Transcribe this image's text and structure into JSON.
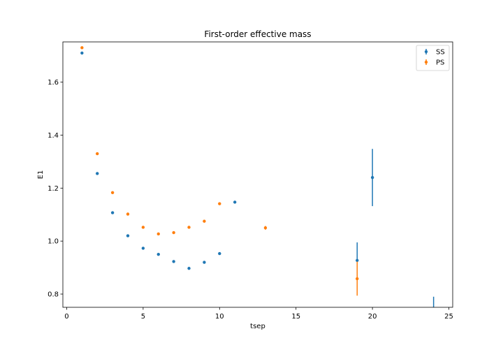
{
  "chart_data": {
    "type": "scatter",
    "title": "First-order effective mass",
    "xlabel": "tsep",
    "ylabel": "E1",
    "xlim": [
      -0.25,
      25.25
    ],
    "ylim": [
      0.75,
      1.752
    ],
    "xticks": [
      0,
      5,
      10,
      15,
      20,
      25
    ],
    "yticks": [
      0.8,
      1.0,
      1.2,
      1.4,
      1.6
    ],
    "xtick_labels": [
      "0",
      "5",
      "10",
      "15",
      "20",
      "25"
    ],
    "ytick_labels": [
      "0.8",
      "1.0",
      "1.2",
      "1.4",
      "1.6"
    ],
    "grid": false,
    "legend_position": "top-right",
    "series": [
      {
        "name": "SS",
        "color": "#1f77b4",
        "points": [
          {
            "x": 1,
            "y": 1.71,
            "err": 0.002
          },
          {
            "x": 2,
            "y": 1.255,
            "err": 0.002
          },
          {
            "x": 3,
            "y": 1.107,
            "err": 0.002
          },
          {
            "x": 4,
            "y": 1.02,
            "err": 0.002
          },
          {
            "x": 5,
            "y": 0.973,
            "err": 0.002
          },
          {
            "x": 6,
            "y": 0.95,
            "err": 0.002
          },
          {
            "x": 7,
            "y": 0.923,
            "err": 0.002
          },
          {
            "x": 8,
            "y": 0.897,
            "err": 0.002
          },
          {
            "x": 9,
            "y": 0.92,
            "err": 0.003
          },
          {
            "x": 10,
            "y": 0.953,
            "err": 0.003
          },
          {
            "x": 11,
            "y": 1.147,
            "err": 0.004
          },
          {
            "x": 19,
            "y": 0.927,
            "err": 0.068
          },
          {
            "x": 20,
            "y": 1.24,
            "err": 0.108
          },
          {
            "x": 24,
            "y": 0.72,
            "err": 0.07
          }
        ]
      },
      {
        "name": "PS",
        "color": "#ff7f0e",
        "points": [
          {
            "x": 1,
            "y": 1.73,
            "err": 0.002
          },
          {
            "x": 2,
            "y": 1.33,
            "err": 0.002
          },
          {
            "x": 3,
            "y": 1.183,
            "err": 0.002
          },
          {
            "x": 4,
            "y": 1.102,
            "err": 0.002
          },
          {
            "x": 5,
            "y": 1.052,
            "err": 0.002
          },
          {
            "x": 6,
            "y": 1.027,
            "err": 0.002
          },
          {
            "x": 7,
            "y": 1.032,
            "err": 0.002
          },
          {
            "x": 8,
            "y": 1.052,
            "err": 0.002
          },
          {
            "x": 9,
            "y": 1.075,
            "err": 0.003
          },
          {
            "x": 10,
            "y": 1.141,
            "err": 0.003
          },
          {
            "x": 13,
            "y": 1.05,
            "err": 0.007
          },
          {
            "x": 19,
            "y": 0.858,
            "err": 0.064
          }
        ]
      }
    ]
  }
}
